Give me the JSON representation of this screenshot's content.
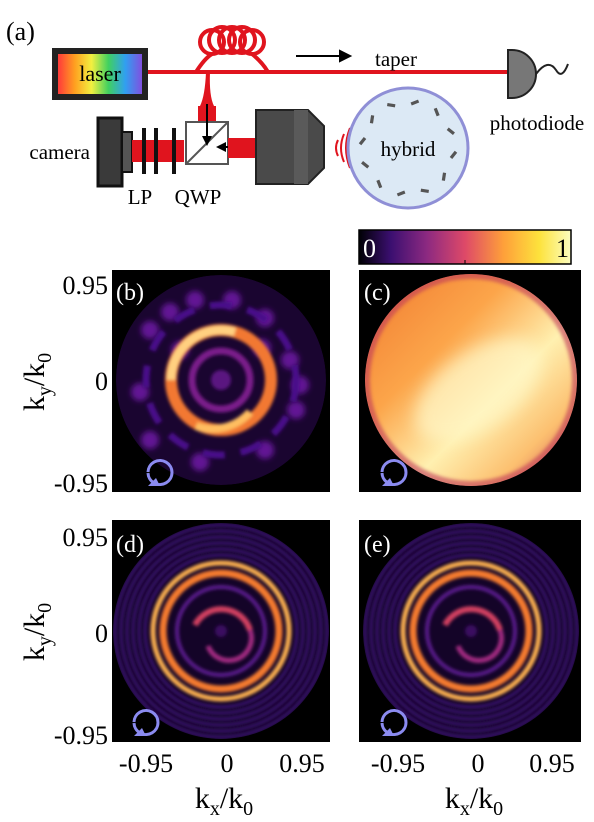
{
  "panel_labels": {
    "a": "(a)",
    "b": "(b)",
    "c": "(c)",
    "d": "(d)",
    "e": "(e)"
  },
  "setup": {
    "laser": "laser",
    "taper": "taper",
    "photodiode": "photodiode",
    "camera": "camera",
    "lp": "LP",
    "qwp": "QWP",
    "hybrid": "hybrid"
  },
  "colorbar": {
    "min_label": "0",
    "max_label": "1",
    "colormap": "inferno-like"
  },
  "axes": {
    "y_label_main": "k",
    "y_label_sub1": "y",
    "y_label_div": "/k",
    "y_label_sub2": "0",
    "x_label_main": "k",
    "x_label_sub1": "x",
    "x_label_div": "/k",
    "x_label_sub2": "0",
    "y_ticks": [
      "0.95",
      "0",
      "-0.95"
    ],
    "x_ticks": [
      "-0.95",
      "0",
      "0.95"
    ]
  },
  "colors": {
    "fiber": "#e0141e",
    "panel_bg": "#000000",
    "polarization_icon": "#8b8bf0",
    "hybrid_fill": "#dce9f5",
    "hybrid_edge": "#8f8fd6"
  }
}
